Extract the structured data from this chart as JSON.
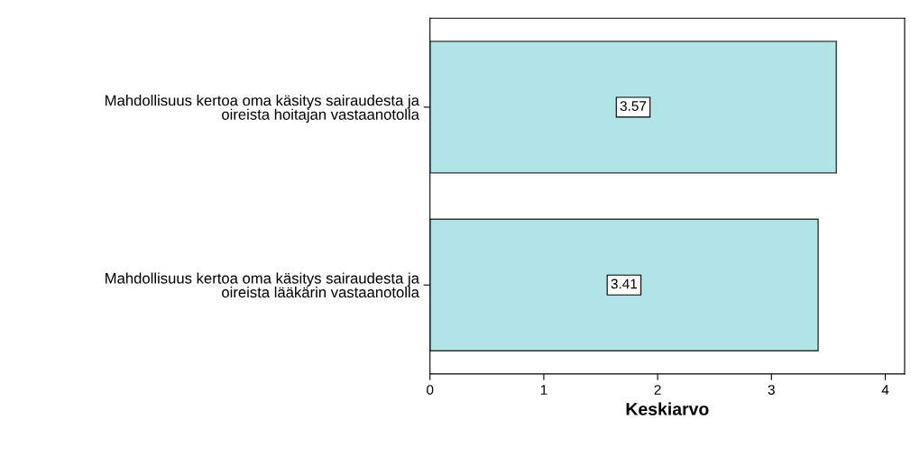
{
  "chart_data": {
    "type": "bar",
    "orientation": "horizontal",
    "xlabel": "Keskiarvo",
    "categories": [
      "Mahdollisuus kertoa oma käsitys sairaudesta ja\noireista hoitajan vastaanotolla",
      "Mahdollisuus kertoa oma käsitys sairaudesta ja\noireista lääkärin vastaanotolla"
    ],
    "values": [
      3.57,
      3.41
    ],
    "color": "#b0e4e6",
    "data_labels": true,
    "xlim": [
      0,
      4.17
    ],
    "xticks": [
      0,
      1,
      2,
      3,
      4
    ],
    "grid": false,
    "legend": false
  }
}
